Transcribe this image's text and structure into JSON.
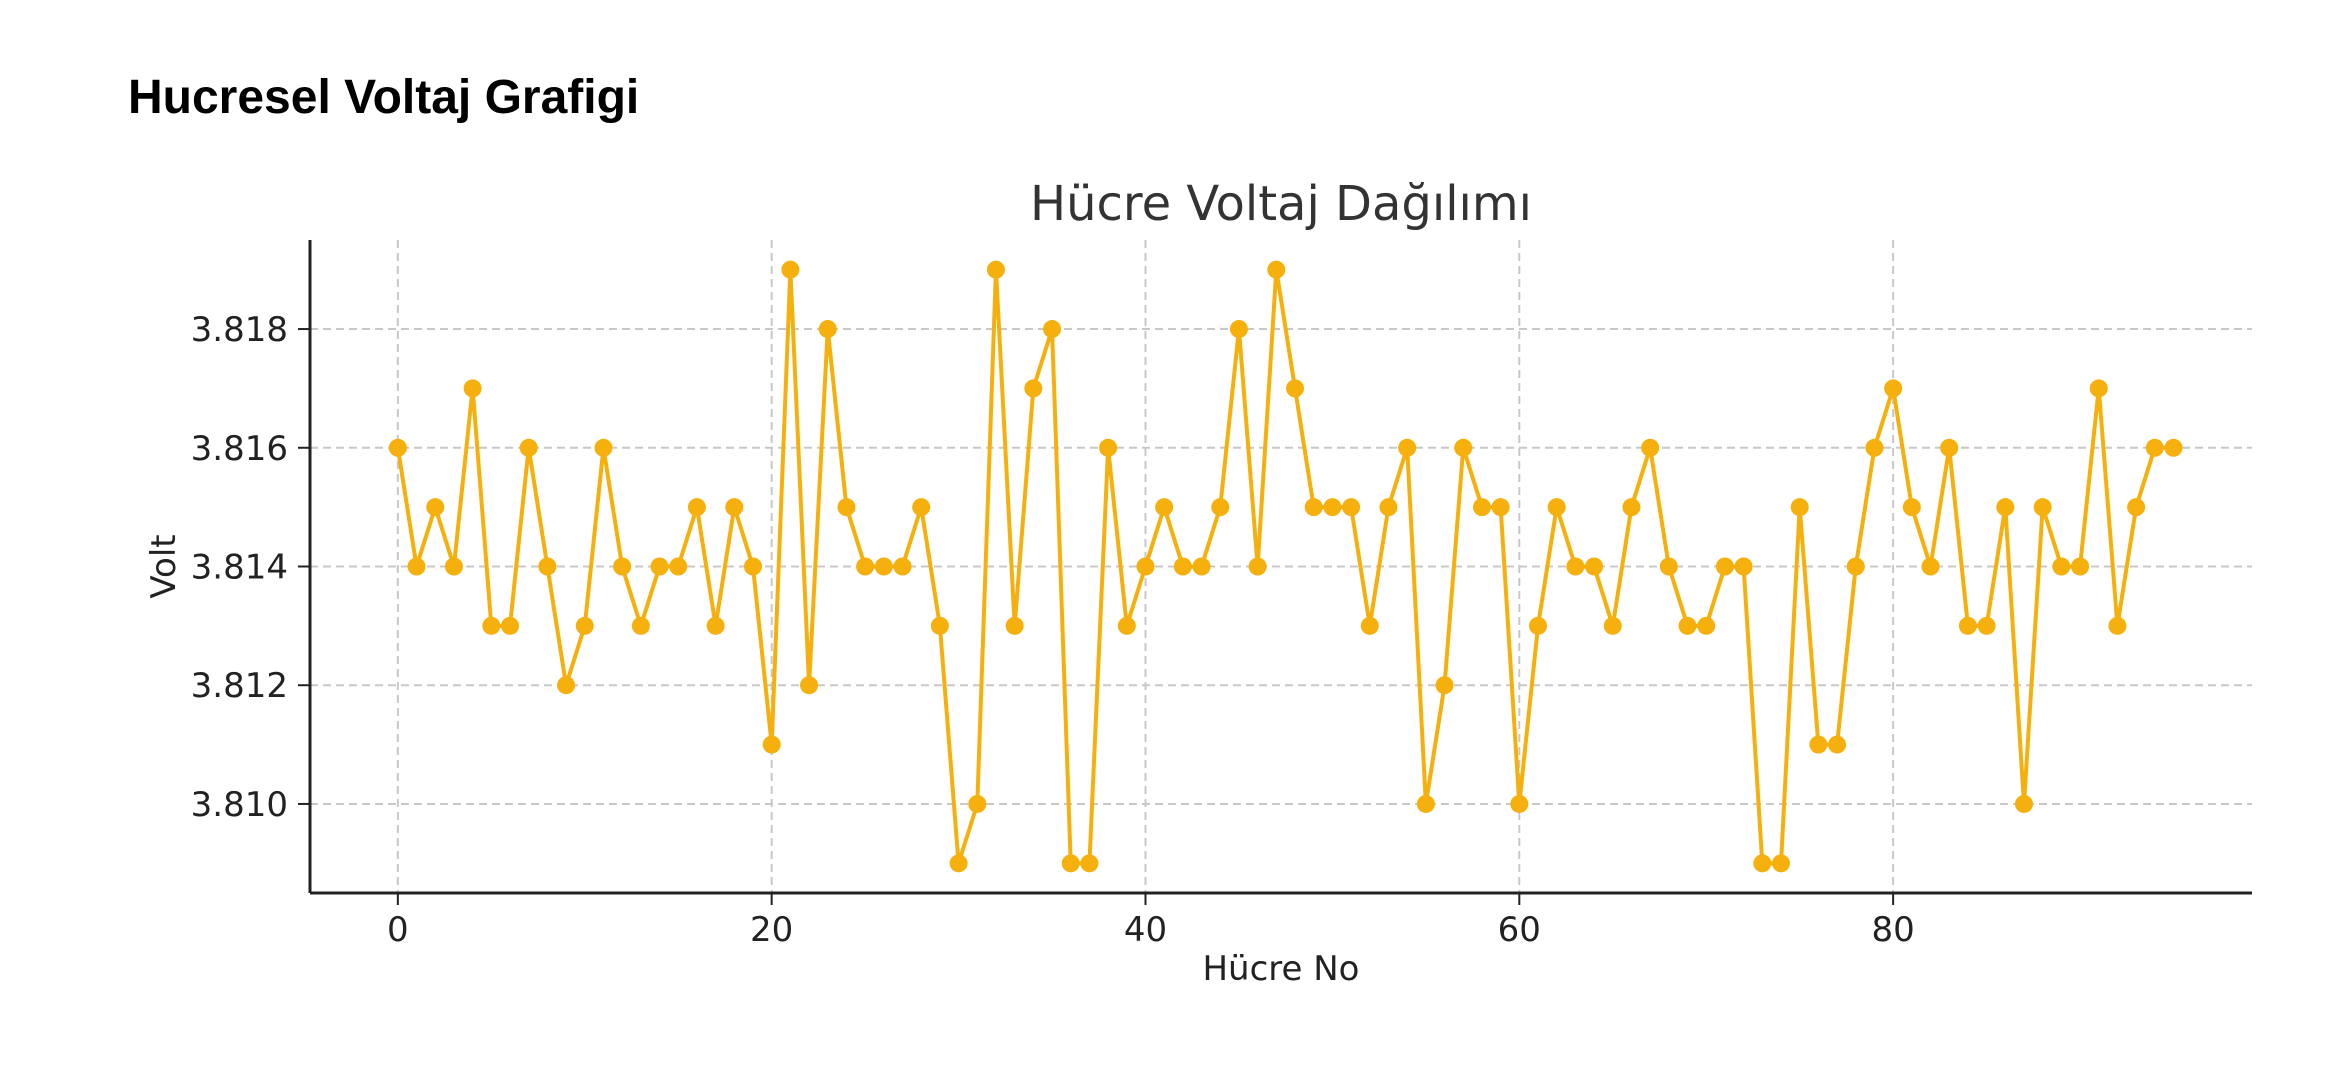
{
  "page": {
    "heading": "Hucresel Voltaj Grafigi"
  },
  "chart_data": {
    "type": "line",
    "title": "Hücre Voltaj Dağılımı",
    "xlabel": "Hücre No",
    "ylabel": "Volt",
    "x_ticks": [
      0,
      20,
      40,
      60,
      80
    ],
    "x_tick_labels": [
      "0",
      "20",
      "40",
      "60",
      "80"
    ],
    "y_ticks": [
      3.81,
      3.812,
      3.814,
      3.816,
      3.818
    ],
    "y_tick_labels": [
      "3.810",
      "3.812",
      "3.814",
      "3.816",
      "3.818"
    ],
    "xlim": [
      -4.7,
      99.2
    ],
    "ylim": [
      3.8085,
      3.8195
    ],
    "grid": true,
    "line_color": "#F6B00E",
    "marker": "circle",
    "series": [
      {
        "x": [
          0,
          1,
          2,
          3,
          4,
          5,
          6,
          7,
          8,
          9,
          10,
          11,
          12,
          13,
          14,
          15,
          16,
          17,
          18,
          19,
          20,
          21,
          22,
          23,
          24,
          25,
          26,
          27,
          28,
          29,
          30,
          31,
          32,
          33,
          34,
          35,
          36,
          37,
          38,
          39,
          40,
          41,
          42,
          43,
          44,
          45,
          46,
          47,
          48,
          49,
          50,
          51,
          52,
          53,
          54,
          55,
          56,
          57,
          58,
          59,
          60,
          61,
          62,
          63,
          64,
          65,
          66,
          67,
          68,
          69,
          70,
          71,
          72,
          73,
          74,
          75,
          76,
          77,
          78,
          79,
          80,
          81,
          82,
          83,
          84,
          85,
          86,
          87,
          88,
          89,
          90,
          91,
          92,
          93,
          94,
          95
        ],
        "values": [
          3.816,
          3.814,
          3.815,
          3.814,
          3.817,
          3.813,
          3.813,
          3.816,
          3.814,
          3.812,
          3.813,
          3.816,
          3.814,
          3.813,
          3.814,
          3.814,
          3.815,
          3.813,
          3.815,
          3.814,
          3.811,
          3.819,
          3.812,
          3.818,
          3.815,
          3.814,
          3.814,
          3.814,
          3.815,
          3.813,
          3.809,
          3.81,
          3.819,
          3.813,
          3.817,
          3.818,
          3.809,
          3.809,
          3.816,
          3.813,
          3.814,
          3.815,
          3.814,
          3.814,
          3.815,
          3.818,
          3.814,
          3.819,
          3.817,
          3.815,
          3.815,
          3.815,
          3.813,
          3.815,
          3.816,
          3.81,
          3.812,
          3.816,
          3.815,
          3.815,
          3.81,
          3.813,
          3.815,
          3.814,
          3.814,
          3.813,
          3.815,
          3.816,
          3.814,
          3.813,
          3.813,
          3.814,
          3.814,
          3.809,
          3.809,
          3.815,
          3.811,
          3.811,
          3.814,
          3.816,
          3.817,
          3.815,
          3.814,
          3.816,
          3.813,
          3.813,
          3.815,
          3.81,
          3.815,
          3.814,
          3.814,
          3.817,
          3.813,
          3.815,
          3.816,
          3.816
        ]
      }
    ]
  }
}
